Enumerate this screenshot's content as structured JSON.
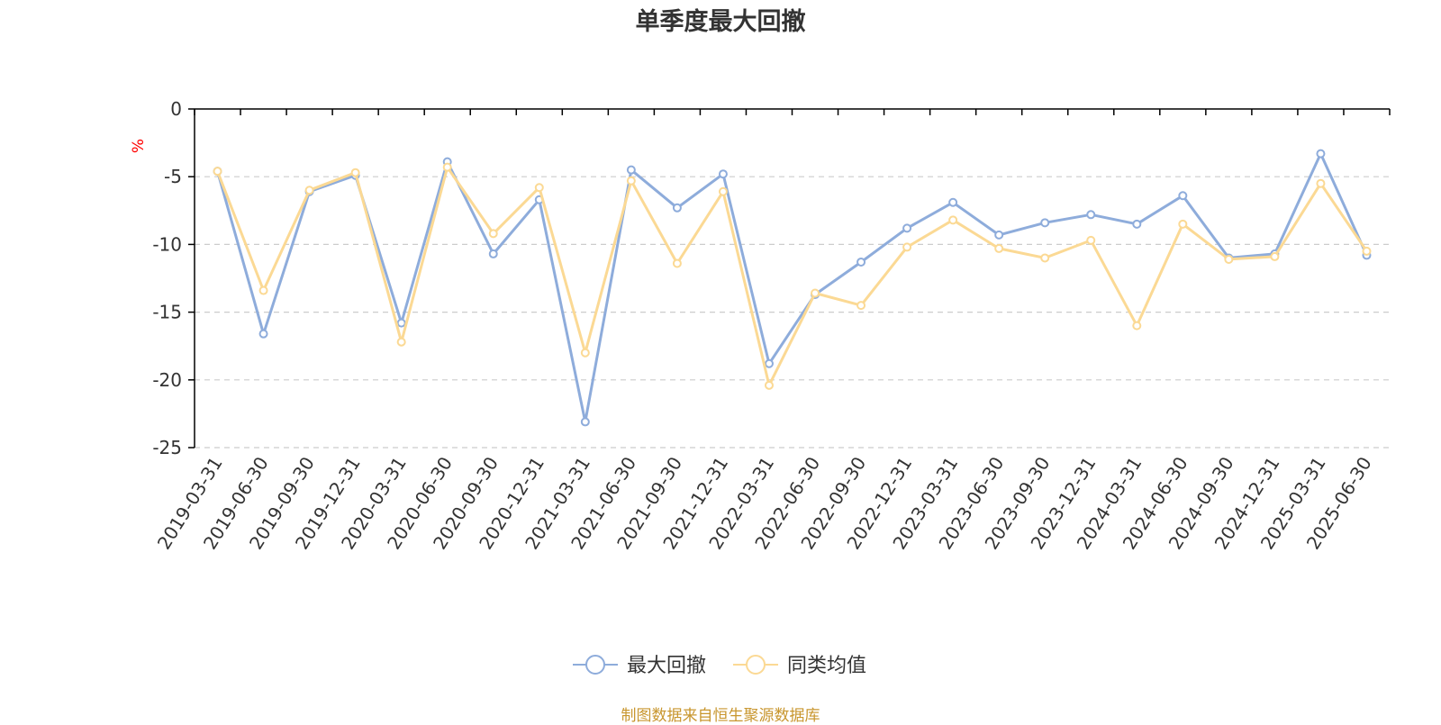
{
  "chart_data": {
    "type": "line",
    "title": "单季度最大回撤",
    "ylabel": "%",
    "categories": [
      "2019-03-31",
      "2019-06-30",
      "2019-09-30",
      "2019-12-31",
      "2020-03-31",
      "2020-06-30",
      "2020-09-30",
      "2020-12-31",
      "2021-03-31",
      "2021-06-30",
      "2021-09-30",
      "2021-12-31",
      "2022-03-31",
      "2022-06-30",
      "2022-09-30",
      "2022-12-31",
      "2023-03-31",
      "2023-06-30",
      "2023-09-30",
      "2023-12-31",
      "2024-03-31",
      "2024-06-30",
      "2024-09-30",
      "2024-12-31",
      "2025-03-31",
      "2025-06-30"
    ],
    "yticks": [
      "0",
      "-5",
      "-10",
      "-15",
      "-20",
      "-25"
    ],
    "ylim": [
      -25,
      0
    ],
    "grid": "dashed horizontal",
    "legend_position": "bottom-center",
    "series": [
      {
        "name": "最大回撤",
        "color": "#8eacdb",
        "values": [
          -4.6,
          -16.6,
          -6.1,
          -4.9,
          -15.8,
          -3.9,
          -10.7,
          -6.7,
          -23.1,
          -4.5,
          -7.3,
          -4.8,
          -18.8,
          -13.7,
          -11.3,
          -8.8,
          -6.9,
          -9.3,
          -8.4,
          -7.8,
          -8.5,
          -6.4,
          -11.0,
          -10.7,
          -3.3,
          -10.8
        ]
      },
      {
        "name": "同类均值",
        "color": "#fbd994",
        "values": [
          -4.6,
          -13.4,
          -6.0,
          -4.7,
          -17.2,
          -4.3,
          -9.2,
          -5.8,
          -18.0,
          -5.3,
          -11.4,
          -6.1,
          -20.4,
          -13.6,
          -14.5,
          -10.2,
          -8.2,
          -10.3,
          -11.0,
          -9.7,
          -16.0,
          -8.5,
          -11.1,
          -10.9,
          -5.5,
          -10.5
        ]
      }
    ]
  },
  "source_note": "制图数据来自恒生聚源数据库",
  "colors": {
    "axis": "#000000",
    "grid": "#cccccc",
    "unit_label": "#ff0000",
    "source_note": "#c8962e"
  }
}
